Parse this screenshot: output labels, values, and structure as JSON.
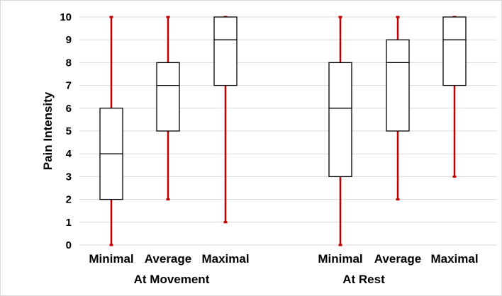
{
  "chart_data": {
    "type": "box",
    "ylabel": "Pain Intensity",
    "ylim": [
      0,
      10
    ],
    "yticks": [
      0,
      1,
      2,
      3,
      4,
      5,
      6,
      7,
      8,
      9,
      10
    ],
    "grid": true,
    "whisker_color": "#c00000",
    "box_color": "#000000",
    "groups": [
      {
        "label": "At Movement",
        "boxes": [
          {
            "category": "Minimal",
            "min": 0,
            "q1": 2,
            "median": 4,
            "q3": 6,
            "max": 10
          },
          {
            "category": "Average",
            "min": 2,
            "q1": 5,
            "median": 7,
            "q3": 8,
            "max": 10
          },
          {
            "category": "Maximal",
            "min": 1,
            "q1": 7,
            "median": 9,
            "q3": 10,
            "max": 10
          }
        ]
      },
      {
        "label": "At Rest",
        "boxes": [
          {
            "category": "Minimal",
            "min": 0,
            "q1": 3,
            "median": 6,
            "q3": 8,
            "max": 10
          },
          {
            "category": "Average",
            "min": 2,
            "q1": 5,
            "median": 8,
            "q3": 9,
            "max": 10
          },
          {
            "category": "Maximal",
            "min": 3,
            "q1": 7,
            "median": 9,
            "q3": 10,
            "max": 10
          }
        ]
      }
    ]
  }
}
